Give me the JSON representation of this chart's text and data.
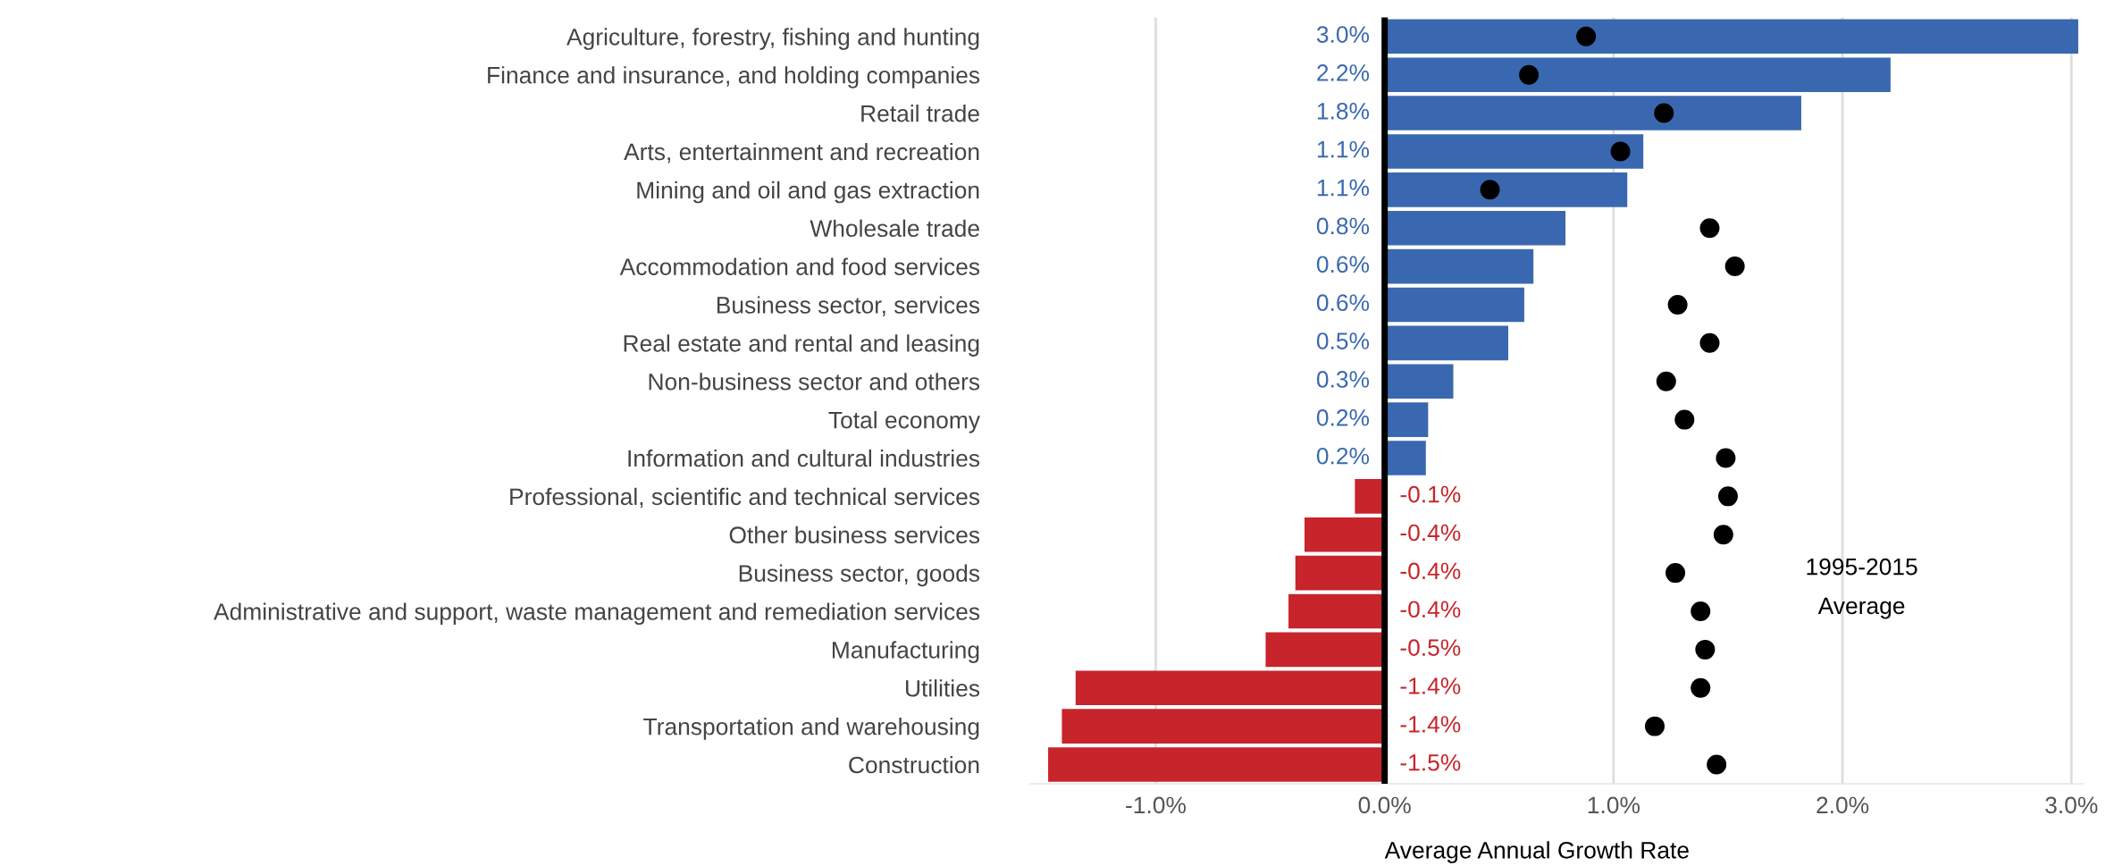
{
  "chart_data": {
    "type": "bar",
    "orientation": "horizontal",
    "xlabel": "Average Annual Growth Rate",
    "categories": [
      "Agriculture, forestry, fishing and hunting",
      "Finance and insurance, and holding companies",
      "Retail trade",
      "Arts, entertainment and recreation",
      "Mining and oil and gas extraction",
      "Wholesale trade",
      "Accommodation and food services",
      "Business sector, services",
      "Real estate and rental and leasing",
      "Non-business sector and others",
      "Total economy",
      "Information and cultural industries",
      "Professional, scientific and technical services",
      "Other business services",
      "Business sector, goods",
      "Administrative and support, waste management and remediation services",
      "Manufacturing",
      "Utilities",
      "Transportation and warehousing",
      "Construction"
    ],
    "series": [
      {
        "values": [
          3.03,
          2.21,
          1.82,
          1.13,
          1.06,
          0.79,
          0.65,
          0.61,
          0.54,
          0.3,
          0.19,
          0.18,
          -0.13,
          -0.35,
          -0.39,
          -0.42,
          -0.52,
          -1.35,
          -1.41,
          -1.47
        ],
        "colors": [
          "#3a68b0",
          "#3a68b0",
          "#3a68b0",
          "#3a68b0",
          "#3a68b0",
          "#3a68b0",
          "#3a68b0",
          "#3a68b0",
          "#3a68b0",
          "#3a68b0",
          "#3a68b0",
          "#3a68b0",
          "#c8242b",
          "#c8242b",
          "#c8242b",
          "#c8242b",
          "#c8242b",
          "#c8242b",
          "#c8242b",
          "#c8242b"
        ],
        "value_labels": [
          "3.0%",
          "2.2%",
          "1.8%",
          "1.1%",
          "1.1%",
          "0.8%",
          "0.6%",
          "0.6%",
          "0.5%",
          "0.3%",
          "0.2%",
          "0.2%",
          "-0.1%",
          "-0.4%",
          "-0.4%",
          "-0.4%",
          "-0.5%",
          "-1.4%",
          "-1.4%",
          "-1.5%"
        ]
      },
      {
        "type": "scatter",
        "color": "#000000",
        "values": [
          0.88,
          0.63,
          1.22,
          1.03,
          0.46,
          1.42,
          1.53,
          1.28,
          1.42,
          1.23,
          1.31,
          1.49,
          1.5,
          1.48,
          1.27,
          1.38,
          1.4,
          1.38,
          1.18,
          1.45
        ]
      }
    ],
    "xlim": [
      -1.55,
      3.05
    ],
    "xticks": [
      {
        "value": -1,
        "label": "-1.0%"
      },
      {
        "value": 0,
        "label": "0.0%"
      },
      {
        "value": 1,
        "label": "1.0%"
      },
      {
        "value": 2,
        "label": "2.0%"
      },
      {
        "value": 3,
        "label": "3.0%"
      }
    ],
    "grid": "x",
    "marker": "circle",
    "ref_lines": [
      {
        "axis": "x",
        "value": 0,
        "color": "#000000"
      }
    ],
    "annotations": [
      "1995-2015\nAverage"
    ]
  }
}
